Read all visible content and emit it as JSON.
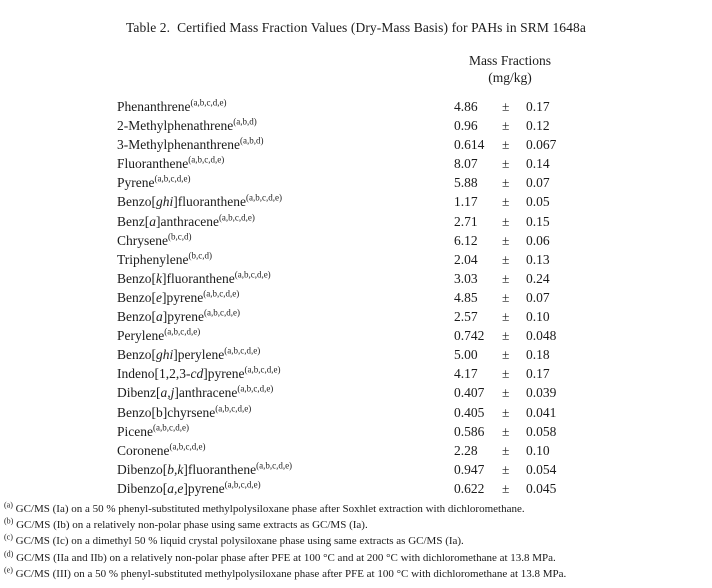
{
  "document": {
    "title": "Table 2.  Certified Mass Fraction Values (Dry-Mass Basis) for PAHs in SRM 1648a"
  },
  "table": {
    "header": {
      "line1": "Mass Fractions",
      "line2": "(mg/kg)"
    },
    "plus_minus": "±",
    "rows": [
      {
        "segments": [
          {
            "t": "Phenanthrene"
          }
        ],
        "sup": "(a,b,c,d,e)",
        "value": "4.86",
        "uncertainty": "0.17"
      },
      {
        "segments": [
          {
            "t": "2-Methylphenathrene"
          }
        ],
        "sup": "(a,b,d)",
        "value": "0.96",
        "uncertainty": "0.12"
      },
      {
        "segments": [
          {
            "t": "3-Methylphenanthrene"
          }
        ],
        "sup": "(a,b,d)",
        "value": "0.614",
        "uncertainty": "0.067"
      },
      {
        "segments": [
          {
            "t": "Fluoranthene"
          }
        ],
        "sup": "(a,b,c,d,e)",
        "value": "8.07",
        "uncertainty": "0.14"
      },
      {
        "segments": [
          {
            "t": "Pyrene"
          }
        ],
        "sup": "(a,b,c,d,e)",
        "value": "5.88",
        "uncertainty": "0.07"
      },
      {
        "segments": [
          {
            "t": "Benzo["
          },
          {
            "t": "ghi",
            "i": true
          },
          {
            "t": "]fluoranthene"
          }
        ],
        "sup": "(a,b,c,d,e)",
        "value": "1.17",
        "uncertainty": "0.05"
      },
      {
        "segments": [
          {
            "t": "Benz["
          },
          {
            "t": "a",
            "i": true
          },
          {
            "t": "]anthracene"
          }
        ],
        "sup": "(a,b,c,d,e)",
        "value": "2.71",
        "uncertainty": "0.15"
      },
      {
        "segments": [
          {
            "t": "Chrysene"
          }
        ],
        "sup": "(b,c,d)",
        "value": "6.12",
        "uncertainty": "0.06"
      },
      {
        "segments": [
          {
            "t": "Triphenylene"
          }
        ],
        "sup": "(b,c,d)",
        "value": "2.04",
        "uncertainty": "0.13"
      },
      {
        "segments": [
          {
            "t": "Benzo["
          },
          {
            "t": "k",
            "i": true
          },
          {
            "t": "]fluoranthene"
          }
        ],
        "sup": "(a,b,c,d,e)",
        "value": "3.03",
        "uncertainty": "0.24"
      },
      {
        "segments": [
          {
            "t": "Benzo["
          },
          {
            "t": "e",
            "i": true
          },
          {
            "t": "]pyrene"
          }
        ],
        "sup": "(a,b,c,d,e)",
        "value": "4.85",
        "uncertainty": "0.07"
      },
      {
        "segments": [
          {
            "t": "Benzo["
          },
          {
            "t": "a",
            "i": true
          },
          {
            "t": "]pyrene"
          }
        ],
        "sup": "(a,b,c,d,e)",
        "value": "2.57",
        "uncertainty": "0.10"
      },
      {
        "segments": [
          {
            "t": "Perylene"
          }
        ],
        "sup": "(a,b,c,d,e)",
        "value": "0.742",
        "uncertainty": "0.048"
      },
      {
        "segments": [
          {
            "t": "Benzo["
          },
          {
            "t": "ghi",
            "i": true
          },
          {
            "t": "]perylene"
          }
        ],
        "sup": "(a,b,c,d,e)",
        "value": "5.00",
        "uncertainty": "0.18"
      },
      {
        "segments": [
          {
            "t": "Indeno[1,2,3-"
          },
          {
            "t": "cd",
            "i": true
          },
          {
            "t": "]pyrene"
          }
        ],
        "sup": "(a,b,c,d,e)",
        "value": "4.17",
        "uncertainty": "0.17"
      },
      {
        "segments": [
          {
            "t": "Dibenz["
          },
          {
            "t": "a,j",
            "i": true
          },
          {
            "t": "]anthracene"
          }
        ],
        "sup": "(a,b,c,d,e)",
        "value": "0.407",
        "uncertainty": "0.039"
      },
      {
        "segments": [
          {
            "t": "Benzo[b]chyrsene"
          }
        ],
        "sup": "(a,b,c,d,e)",
        "value": "0.405",
        "uncertainty": "0.041"
      },
      {
        "segments": [
          {
            "t": "Picene"
          }
        ],
        "sup": "(a,b,c,d,e)",
        "value": "0.586",
        "uncertainty": "0.058"
      },
      {
        "segments": [
          {
            "t": "Coronene"
          }
        ],
        "sup": "(a,b,c,d,e)",
        "value": "2.28",
        "uncertainty": "0.10"
      },
      {
        "segments": [
          {
            "t": "Dibenzo["
          },
          {
            "t": "b,k",
            "i": true
          },
          {
            "t": "]fluoranthene"
          }
        ],
        "sup": "(a,b,c,d,e)",
        "value": "0.947",
        "uncertainty": "0.054"
      },
      {
        "segments": [
          {
            "t": "Dibenzo["
          },
          {
            "t": "a,e",
            "i": true
          },
          {
            "t": "]pyrene"
          }
        ],
        "sup": "(a,b,c,d,e)",
        "value": "0.622",
        "uncertainty": "0.045"
      }
    ]
  },
  "footnotes": [
    {
      "marker": "(a)",
      "text": "GC/MS (Ia) on a 50 % phenyl-substituted methylpolysiloxane phase after Soxhlet extraction with dichloromethane."
    },
    {
      "marker": "(b)",
      "text": "GC/MS (Ib) on a relatively non-polar phase using same extracts as GC/MS (Ia)."
    },
    {
      "marker": "(c)",
      "text": "GC/MS (Ic) on a dimethyl 50 % liquid crystal polysiloxane phase using same extracts as GC/MS (Ia)."
    },
    {
      "marker": "(d)",
      "text": "GC/MS (IIa and IIb) on a relatively non-polar phase after PFE at 100 °C and at 200 °C with dichloromethane at 13.8 MPa."
    },
    {
      "marker": "(e)",
      "text": "GC/MS (III) on a 50 % phenyl-substituted methylpolysiloxane phase after PFE at 100 °C with dichloromethane at 13.8 MPa."
    }
  ]
}
